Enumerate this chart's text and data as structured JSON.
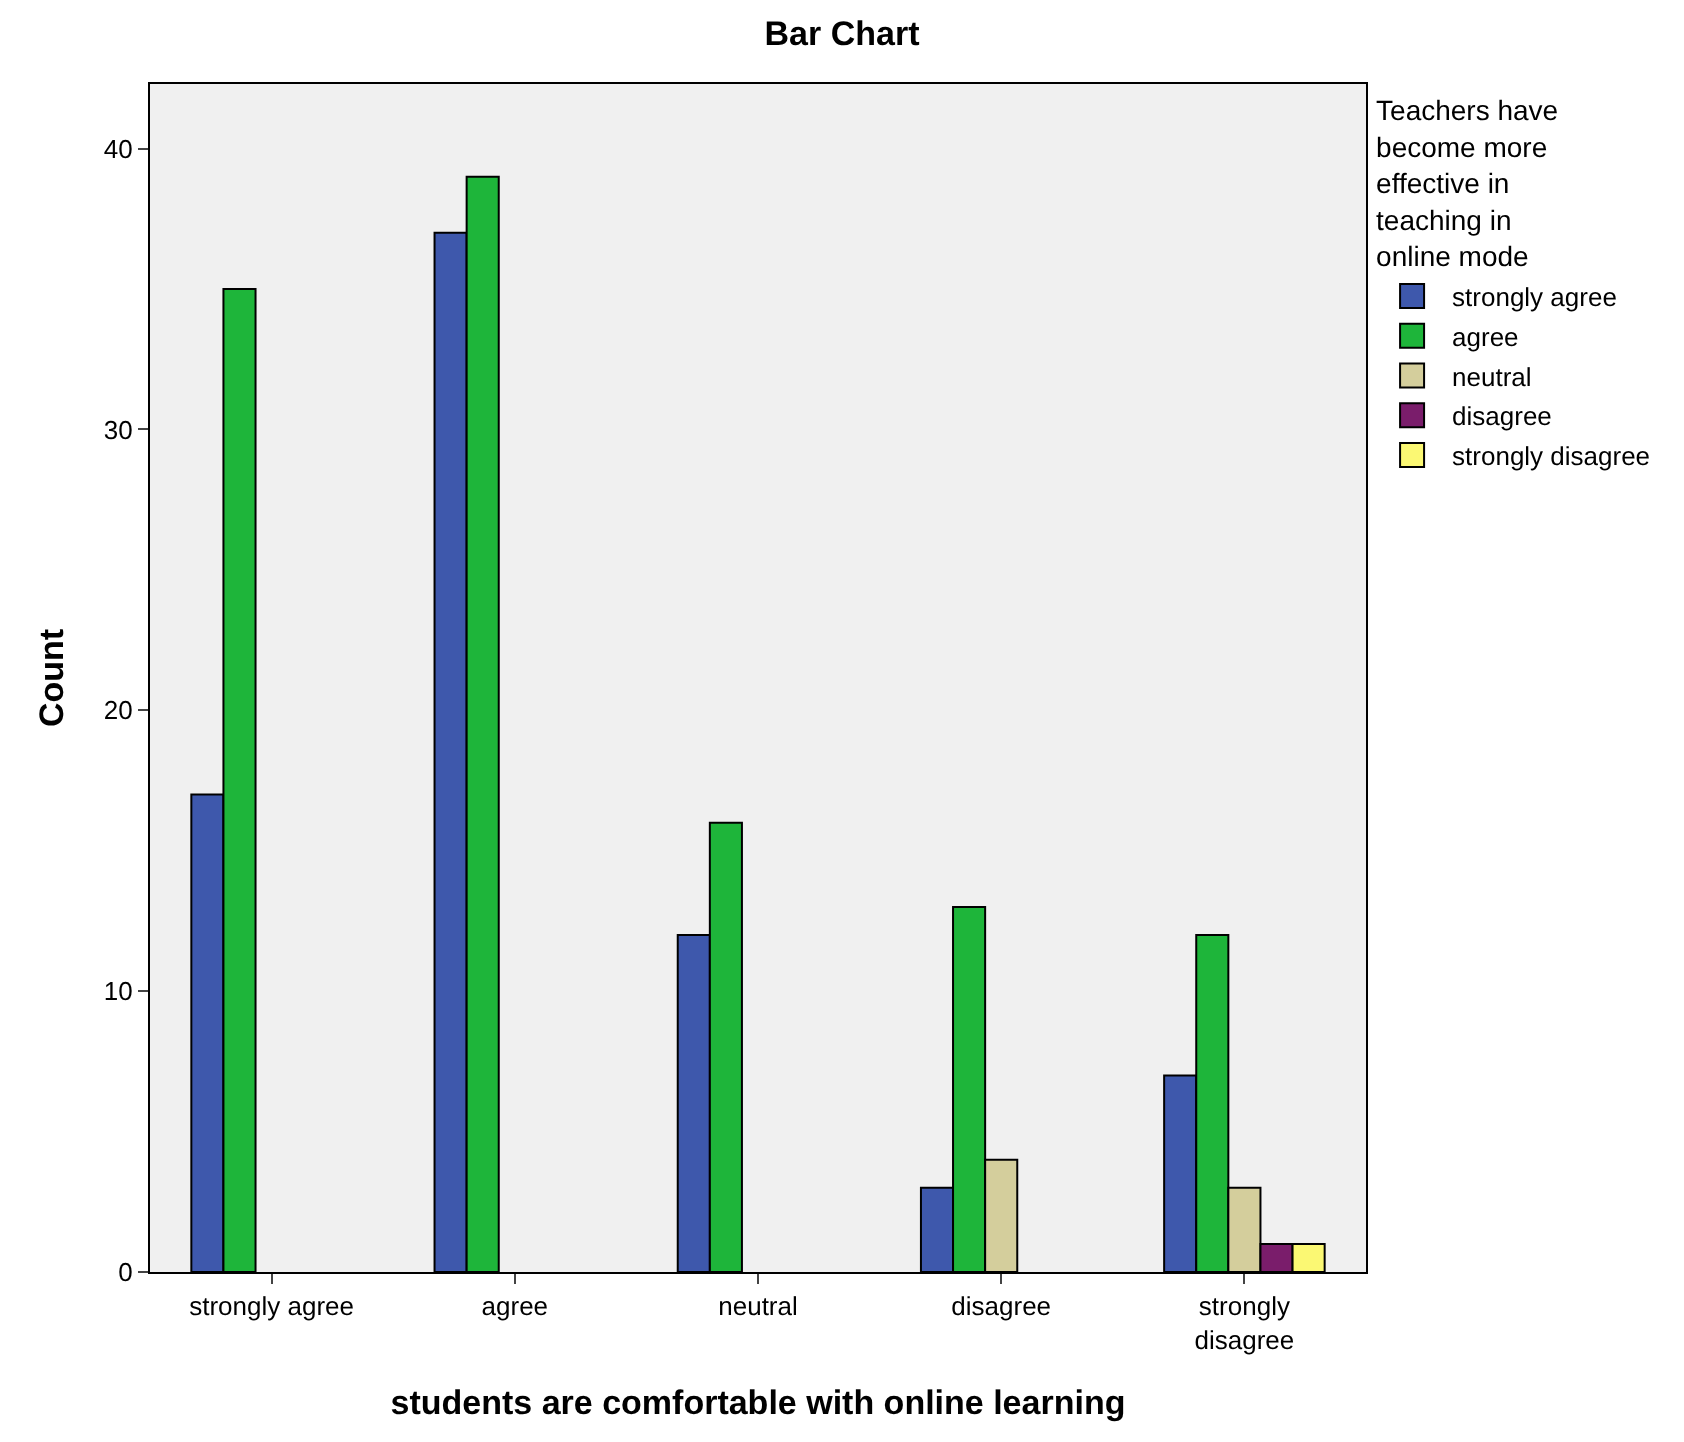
{
  "chart_data": {
    "type": "bar",
    "title": "Bar Chart",
    "xlabel": "students are comfortable with online learning",
    "ylabel": "Count",
    "legend_title": "Teachers have become more effective in teaching in online mode",
    "categories": [
      "strongly agree",
      "agree",
      "neutral",
      "disagree",
      "strongly disagree"
    ],
    "series": [
      {
        "name": "strongly agree",
        "color": "#3e58ac",
        "values": [
          17,
          37,
          12,
          3,
          7
        ]
      },
      {
        "name": "agree",
        "color": "#1eb53a",
        "values": [
          35,
          39,
          16,
          13,
          12
        ]
      },
      {
        "name": "neutral",
        "color": "#d4ce9c",
        "values": [
          null,
          null,
          null,
          4,
          3
        ]
      },
      {
        "name": "disagree",
        "color": "#7a1d6b",
        "values": [
          null,
          null,
          null,
          null,
          1
        ]
      },
      {
        "name": "strongly disagree",
        "color": "#fbf873",
        "values": [
          null,
          null,
          null,
          null,
          1
        ]
      }
    ],
    "ylim": [
      0,
      42.3
    ],
    "yticks": [
      0,
      10,
      20,
      30,
      40
    ],
    "grid": false,
    "legend": "top right"
  }
}
